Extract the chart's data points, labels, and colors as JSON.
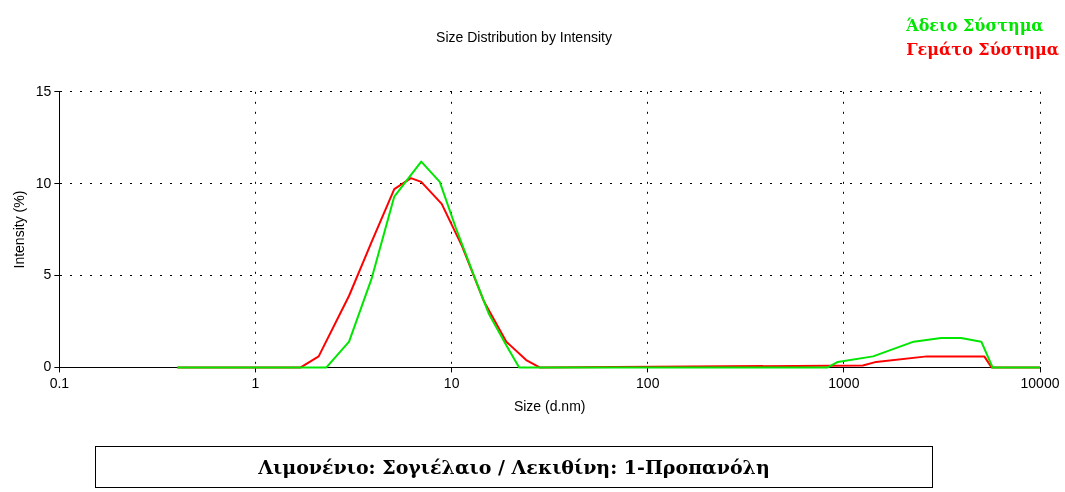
{
  "chart_data": {
    "type": "line",
    "title": "Size Distribution by Intensity",
    "xlabel": "Size (d.nm)",
    "ylabel": "Intensity (%)",
    "log": "x",
    "xlim": [
      0.1,
      10000
    ],
    "xticks": [
      0.1,
      1,
      10,
      100,
      1000,
      10000
    ],
    "ylim": [
      0,
      15
    ],
    "yticks": [
      0,
      5,
      10,
      15
    ],
    "grid": true,
    "legend": "top right",
    "line_style": "solid",
    "marker": "none",
    "series": [
      {
        "name": "Άδειο Σύστημα",
        "color": "#00e600",
        "x": [
          0.4,
          2.3,
          3.0,
          3.9,
          5.1,
          7.0,
          8.7,
          10.5,
          13.0,
          15.5,
          19.0,
          22.1,
          828,
          931,
          1410,
          2270,
          3130,
          3960,
          5020,
          5730,
          10000
        ],
        "values": [
          0,
          0,
          1.4,
          4.8,
          9.3,
          11.2,
          10.1,
          7.6,
          5.0,
          2.9,
          1.2,
          0,
          0,
          0.3,
          0.6,
          1.4,
          1.6,
          1.6,
          1.4,
          0,
          0
        ]
      },
      {
        "name": "Γεμάτο Σύστημα",
        "color": "#ff0000",
        "x": [
          0.4,
          1.7,
          2.1,
          3.0,
          3.9,
          5.1,
          6.2,
          7.0,
          8.9,
          11.3,
          14.6,
          19.0,
          24.0,
          28.1,
          1250,
          1460,
          2650,
          5200,
          5660,
          10000
        ],
        "values": [
          0,
          0,
          0.6,
          3.9,
          6.8,
          9.7,
          10.3,
          10.1,
          8.9,
          6.6,
          3.6,
          1.4,
          0.4,
          0,
          0.1,
          0.3,
          0.6,
          0.6,
          0,
          0
        ]
      }
    ],
    "annotations": [
      "Λιμονένιο: Σογιέλαιο / Λεκιθίνη: 1-Προπανόλη"
    ]
  }
}
